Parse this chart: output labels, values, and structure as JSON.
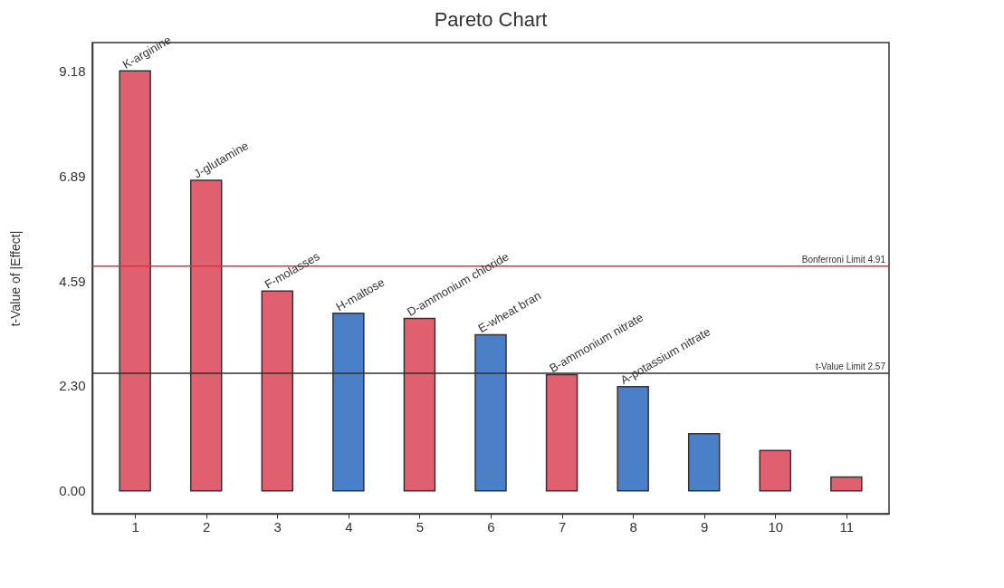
{
  "chart_data": {
    "type": "bar",
    "title": "Pareto Chart",
    "ylabel": "t-Value of |Effect|",
    "x": [
      1,
      2,
      3,
      4,
      5,
      6,
      7,
      8,
      9,
      10,
      11
    ],
    "values": [
      9.18,
      6.79,
      4.37,
      3.88,
      3.77,
      3.41,
      2.54,
      2.28,
      1.25,
      0.88,
      0.3
    ],
    "colors": [
      "#e06070",
      "#e06070",
      "#e06070",
      "#4a80c8",
      "#e06070",
      "#4a80c8",
      "#e06070",
      "#4a80c8",
      "#4a80c8",
      "#e06070",
      "#e06070"
    ],
    "xlim": [
      0.4,
      11.6
    ],
    "xticks": [
      1,
      2,
      3,
      4,
      5,
      6,
      7,
      8,
      9,
      10,
      11
    ],
    "ylim": [
      -0.5,
      9.8
    ],
    "yticks": [
      {
        "value": 0,
        "label": "0.00"
      },
      {
        "value": 2.295,
        "label": "2.30"
      },
      {
        "value": 4.59,
        "label": "4.59"
      },
      {
        "value": 6.885,
        "label": "6.89"
      },
      {
        "value": 9.18,
        "label": "9.18"
      }
    ],
    "ref_lines": [
      {
        "axis": "y",
        "value": 4.91,
        "label": "Bonferroni Limit 4.91",
        "color": "#e03040"
      },
      {
        "axis": "y",
        "value": 2.57,
        "label": "t-Value Limit 2.57",
        "color": "#303030"
      }
    ],
    "annotations": [
      {
        "text": "K-arginine",
        "x": 1,
        "y": 9.18
      },
      {
        "text": "J-glutamine",
        "x": 2,
        "y": 6.79
      },
      {
        "text": "F-molasses",
        "x": 3,
        "y": 4.37
      },
      {
        "text": "H-maltose",
        "x": 4,
        "y": 3.88
      },
      {
        "text": "D-ammonium chloride",
        "x": 5,
        "y": 3.77
      },
      {
        "text": "E-wheat bran",
        "x": 6,
        "y": 3.41
      },
      {
        "text": "B-ammonium nitrate",
        "x": 7,
        "y": 2.54
      },
      {
        "text": "A-potassium nitrate",
        "x": 8,
        "y": 2.28
      }
    ],
    "grid": false
  }
}
